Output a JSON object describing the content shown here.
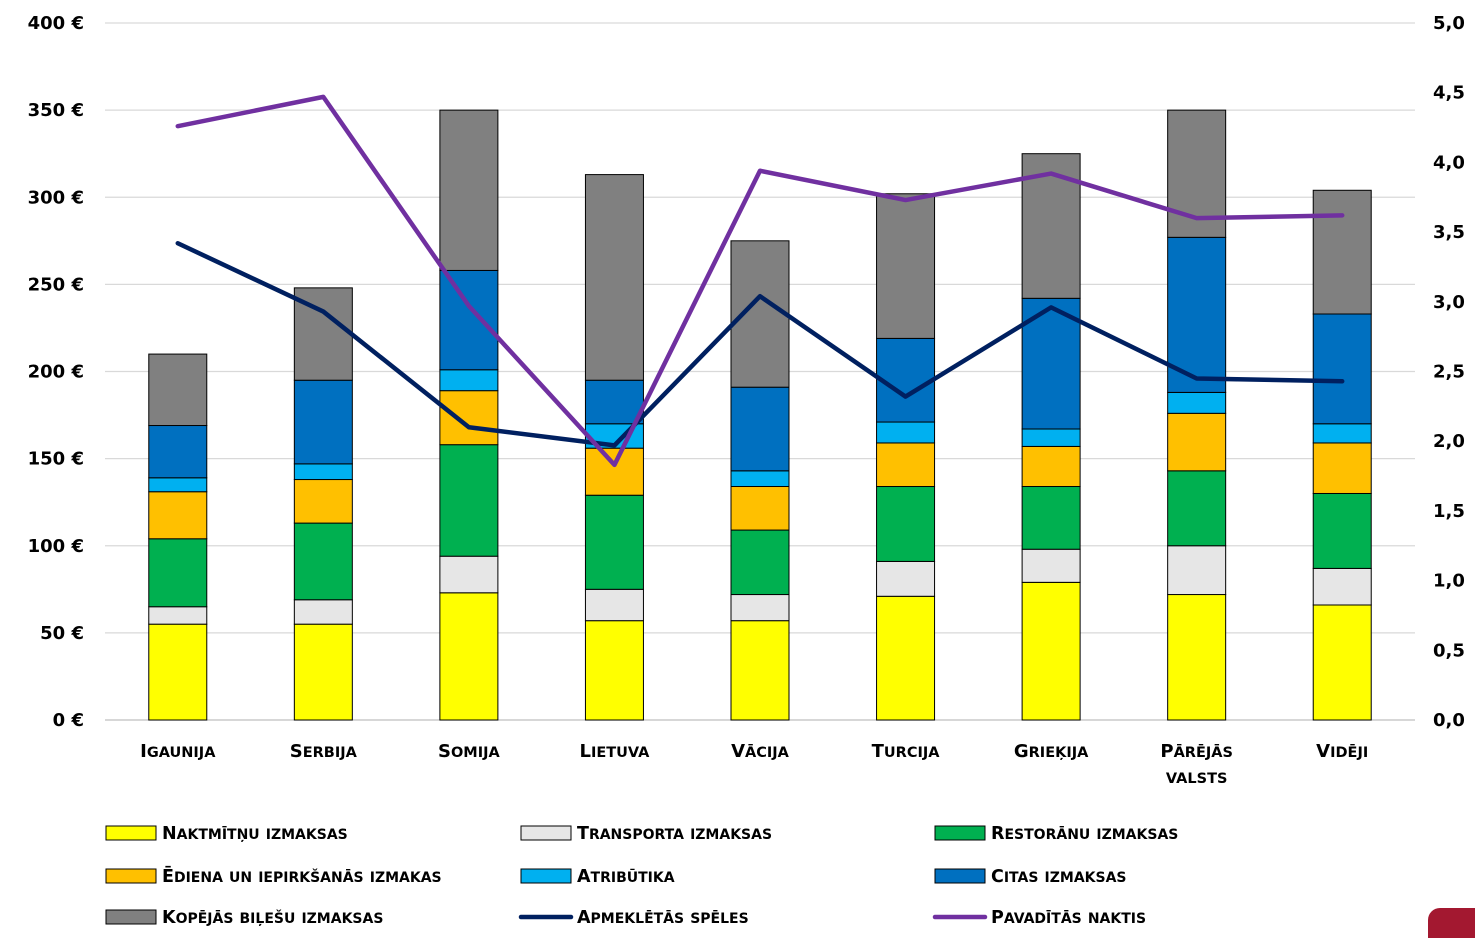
{
  "chart_data": {
    "type": "bar",
    "stacked": true,
    "categories": [
      [
        "Igaunija"
      ],
      [
        "Serbija"
      ],
      [
        "Somija"
      ],
      [
        "Lietuva"
      ],
      [
        "Vācija"
      ],
      [
        "Turcija"
      ],
      [
        "Grieķija"
      ],
      [
        "Pārējās",
        "valsts"
      ],
      [
        "Vidēji"
      ]
    ],
    "y_left": {
      "ticks": [
        "0 €",
        "50 €",
        "100 €",
        "150 €",
        "200 €",
        "250 €",
        "300 €",
        "350 €",
        "400 €"
      ],
      "ylim": [
        0,
        400
      ]
    },
    "y_right": {
      "ticks": [
        "0,0",
        "0,5",
        "1,0",
        "1,5",
        "2,0",
        "2,5",
        "3,0",
        "3,5",
        "4,0",
        "4,5",
        "5,0"
      ],
      "ylim": [
        0,
        5
      ]
    },
    "grid": "horizontal",
    "legend_position": "bottom",
    "bar_series": [
      {
        "name": "Naktmītņu  izmaksas",
        "color": "#ffff00",
        "values": [
          55,
          55,
          73,
          57,
          57,
          71,
          79,
          72,
          66
        ]
      },
      {
        "name": "Transporta izmaksas",
        "color": "#e6e6e6",
        "values": [
          10,
          14,
          21,
          18,
          15,
          20,
          19,
          28,
          21
        ]
      },
      {
        "name": "Restorānu izmaksas",
        "color": "#00b050",
        "values": [
          39,
          44,
          64,
          54,
          37,
          43,
          36,
          43,
          43
        ]
      },
      {
        "name": "Ēdiena un iepirkšanās izmakas",
        "color": "#ffc000",
        "values": [
          27,
          25,
          31,
          27,
          25,
          25,
          23,
          33,
          29
        ]
      },
      {
        "name": "Atribūtika",
        "color": "#00b0f0",
        "values": [
          8,
          9,
          12,
          14,
          9,
          12,
          10,
          12,
          11
        ]
      },
      {
        "name": "Citas izmaksas",
        "color": "#0070c0",
        "values": [
          30,
          48,
          57,
          25,
          48,
          48,
          75,
          89,
          63
        ]
      },
      {
        "name": "Kopējās biļešu izmaksas",
        "color": "#808080",
        "values": [
          41,
          53,
          92,
          118,
          84,
          83,
          83,
          73,
          71
        ]
      }
    ],
    "line_series": [
      {
        "name": "Apmeklētās spēles",
        "color": "#002060",
        "axis": "right",
        "values": [
          3.42,
          2.93,
          2.1,
          1.97,
          3.04,
          2.32,
          2.96,
          2.45,
          2.43
        ]
      },
      {
        "name": "Pavadītās naktis",
        "color": "#7030a0",
        "axis": "right",
        "values": [
          4.26,
          4.47,
          2.97,
          1.83,
          3.94,
          3.73,
          3.92,
          3.6,
          3.62
        ]
      }
    ]
  },
  "legend": [
    {
      "label": "Naktmītņu  izmaksas",
      "kind": "box",
      "color": "#ffff00"
    },
    {
      "label": "Transporta izmaksas",
      "kind": "box",
      "color": "#e6e6e6"
    },
    {
      "label": "Restorānu izmaksas",
      "kind": "box",
      "color": "#00b050"
    },
    {
      "label": "Ēdiena un iepirkšanās izmakas",
      "kind": "box",
      "color": "#ffc000"
    },
    {
      "label": "Atribūtika",
      "kind": "box",
      "color": "#00b0f0"
    },
    {
      "label": "Citas izmaksas",
      "kind": "box",
      "color": "#0070c0"
    },
    {
      "label": "Kopējās biļešu izmaksas",
      "kind": "box",
      "color": "#808080"
    },
    {
      "label": "Apmeklētās spēles",
      "kind": "line",
      "color": "#002060"
    },
    {
      "label": "Pavadītās naktis",
      "kind": "line",
      "color": "#7030a0"
    }
  ]
}
